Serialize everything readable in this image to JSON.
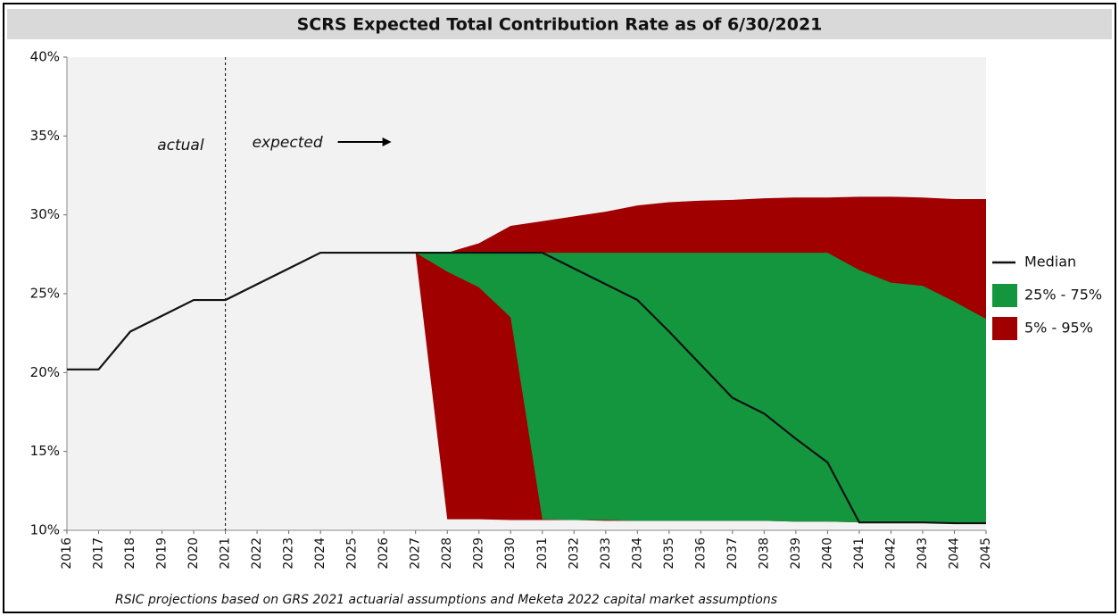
{
  "chart_data": {
    "type": "band-line",
    "title": "SCRS Expected Total Contribution Rate as of 6/30/2021",
    "footnote": "RSIC projections based on GRS 2021 actuarial assumptions and Meketa 2022 capital market assumptions",
    "annotations": {
      "actual": "actual",
      "expected": "expected",
      "divider": "2021"
    },
    "categories": [
      "2016",
      "2017",
      "2018",
      "2019",
      "2020",
      "2021",
      "2022",
      "2023",
      "2024",
      "2025",
      "2026",
      "2027",
      "2028",
      "2029",
      "2030",
      "2031",
      "2032",
      "2033",
      "2034",
      "2035",
      "2036",
      "2037",
      "2038",
      "2039",
      "2040",
      "2041",
      "2042",
      "2043",
      "2044",
      "2045"
    ],
    "ylim": [
      10,
      40
    ],
    "yticks": [
      {
        "value": 10,
        "label": "10%"
      },
      {
        "value": 15,
        "label": "15%"
      },
      {
        "value": 20,
        "label": "20%"
      },
      {
        "value": 25,
        "label": "25%"
      },
      {
        "value": 30,
        "label": "30%"
      },
      {
        "value": 35,
        "label": "35%"
      },
      {
        "value": 40,
        "label": "40%"
      }
    ],
    "series": [
      {
        "name": "Median",
        "color": "#111111",
        "values": [
          20.2,
          20.2,
          22.6,
          23.6,
          24.6,
          24.6,
          25.6,
          26.6,
          27.6,
          27.6,
          27.6,
          27.6,
          27.6,
          27.6,
          27.6,
          27.6,
          26.6,
          25.6,
          24.6,
          22.6,
          20.5,
          18.4,
          17.4,
          15.8,
          14.3,
          10.5,
          10.5,
          10.5,
          10.45,
          10.45
        ]
      },
      {
        "name": "25% - 75%",
        "color": "#14963f",
        "low": [
          null,
          null,
          null,
          null,
          null,
          null,
          null,
          null,
          null,
          null,
          null,
          27.6,
          26.4,
          25.4,
          23.5,
          10.7,
          10.65,
          10.65,
          10.6,
          10.6,
          10.6,
          10.6,
          10.6,
          10.55,
          10.55,
          10.5,
          10.5,
          10.5,
          10.5,
          10.5
        ],
        "high": [
          null,
          null,
          null,
          null,
          null,
          null,
          null,
          null,
          null,
          null,
          null,
          27.6,
          27.6,
          27.6,
          27.6,
          27.6,
          27.6,
          27.6,
          27.6,
          27.6,
          27.6,
          27.6,
          27.6,
          27.6,
          27.6,
          26.5,
          25.7,
          25.5,
          24.5,
          23.4
        ]
      },
      {
        "name": "5% - 95%",
        "color": "#a00000",
        "low": [
          null,
          null,
          null,
          null,
          null,
          null,
          null,
          null,
          null,
          null,
          null,
          27.6,
          10.7,
          10.7,
          10.65,
          10.65,
          10.65,
          10.6,
          10.6,
          10.6,
          10.6,
          10.6,
          10.6,
          10.55,
          10.55,
          10.5,
          10.5,
          10.5,
          10.5,
          10.5
        ],
        "high": [
          null,
          null,
          null,
          null,
          null,
          null,
          null,
          null,
          null,
          null,
          null,
          27.6,
          27.6,
          28.2,
          29.3,
          29.6,
          29.9,
          30.2,
          30.6,
          30.8,
          30.9,
          30.95,
          31.05,
          31.1,
          31.1,
          31.15,
          31.15,
          31.1,
          31.0,
          31.0
        ]
      }
    ]
  }
}
